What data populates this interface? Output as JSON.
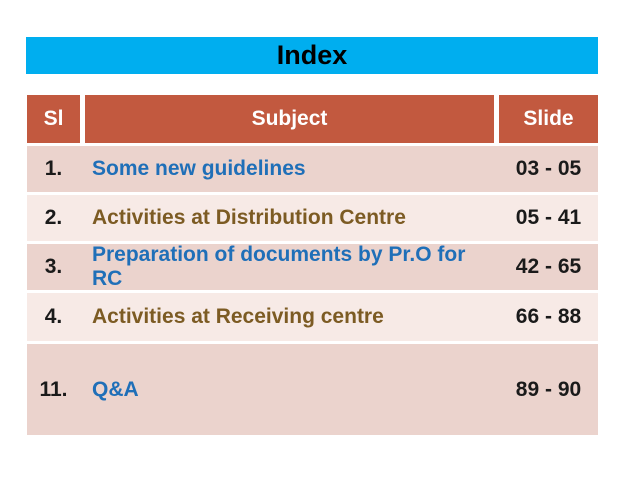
{
  "slide": {
    "title": "Index"
  },
  "colors": {
    "title_bar_bg": "#00AEEF",
    "title_text": "#000000",
    "header_bg": "#C2593F",
    "header_text": "#FFFFFF",
    "band_dark": "#EBD3CD",
    "band_light": "#F7EAE6",
    "subject_blue": "#1F6FB8",
    "subject_brown": "#7C5B23",
    "number_text": "#1A1A1A"
  },
  "table": {
    "columns": {
      "sl": "Sl",
      "subject": "Subject",
      "slide": "Slide"
    },
    "rows": [
      {
        "sl": "1.",
        "subject": "Some new guidelines",
        "slide": "03 - 05",
        "subject_color": "blue",
        "band": "dark",
        "tall": false
      },
      {
        "sl": "2.",
        "subject": "Activities at Distribution Centre",
        "slide": "05 - 41",
        "subject_color": "brown",
        "band": "light",
        "tall": false
      },
      {
        "sl": "3.",
        "subject": "Preparation of documents by Pr.O for RC",
        "slide": "42 - 65",
        "subject_color": "blue",
        "band": "dark",
        "tall": false
      },
      {
        "sl": "4.",
        "subject": "Activities at Receiving centre",
        "slide": "66 - 88",
        "subject_color": "brown",
        "band": "light",
        "tall": false
      },
      {
        "sl": "11.",
        "subject": "Q&A",
        "slide": "89 - 90",
        "subject_color": "blue",
        "band": "dark",
        "tall": true
      }
    ]
  }
}
